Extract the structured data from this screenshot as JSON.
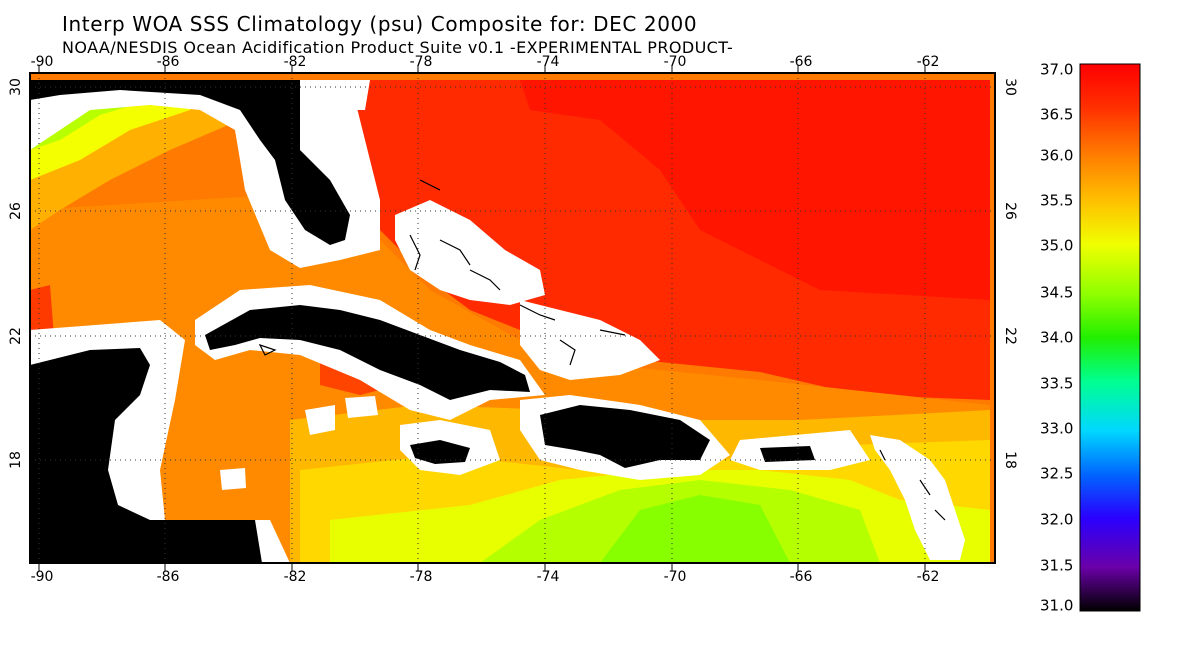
{
  "title": "Interp WOA SSS Climatology (psu) Composite for: DEC 2000",
  "subtitle": "NOAA/NESDIS Ocean Acidification Product Suite  v0.1 -EXPERIMENTAL PRODUCT-",
  "map": {
    "lon_range": [
      -90.5,
      -60
    ],
    "lat_range": [
      15,
      31
    ],
    "lon_ticks": [
      "-90",
      "-86",
      "-82",
      "-78",
      "-74",
      "-70",
      "-66",
      "-62"
    ],
    "lat_ticks": [
      "30",
      "26",
      "22",
      "18"
    ],
    "land_color": "#000000",
    "coast_mask_color": "#ffffff",
    "gridlines": "dotted"
  },
  "colorbar": {
    "min": 31.0,
    "max": 37.0,
    "labels": [
      "37.0",
      "36.5",
      "36.0",
      "35.5",
      "35.0",
      "34.5",
      "34.0",
      "33.5",
      "33.0",
      "32.5",
      "32.0",
      "31.5",
      "31.0"
    ],
    "colors": [
      "#000000",
      "#6a00a8",
      "#2a00ff",
      "#0066ff",
      "#00d8ff",
      "#00ff90",
      "#22ee00",
      "#90ff00",
      "#f0ff00",
      "#ffc000",
      "#ff8000",
      "#ff3000",
      "#ff0000"
    ]
  }
}
